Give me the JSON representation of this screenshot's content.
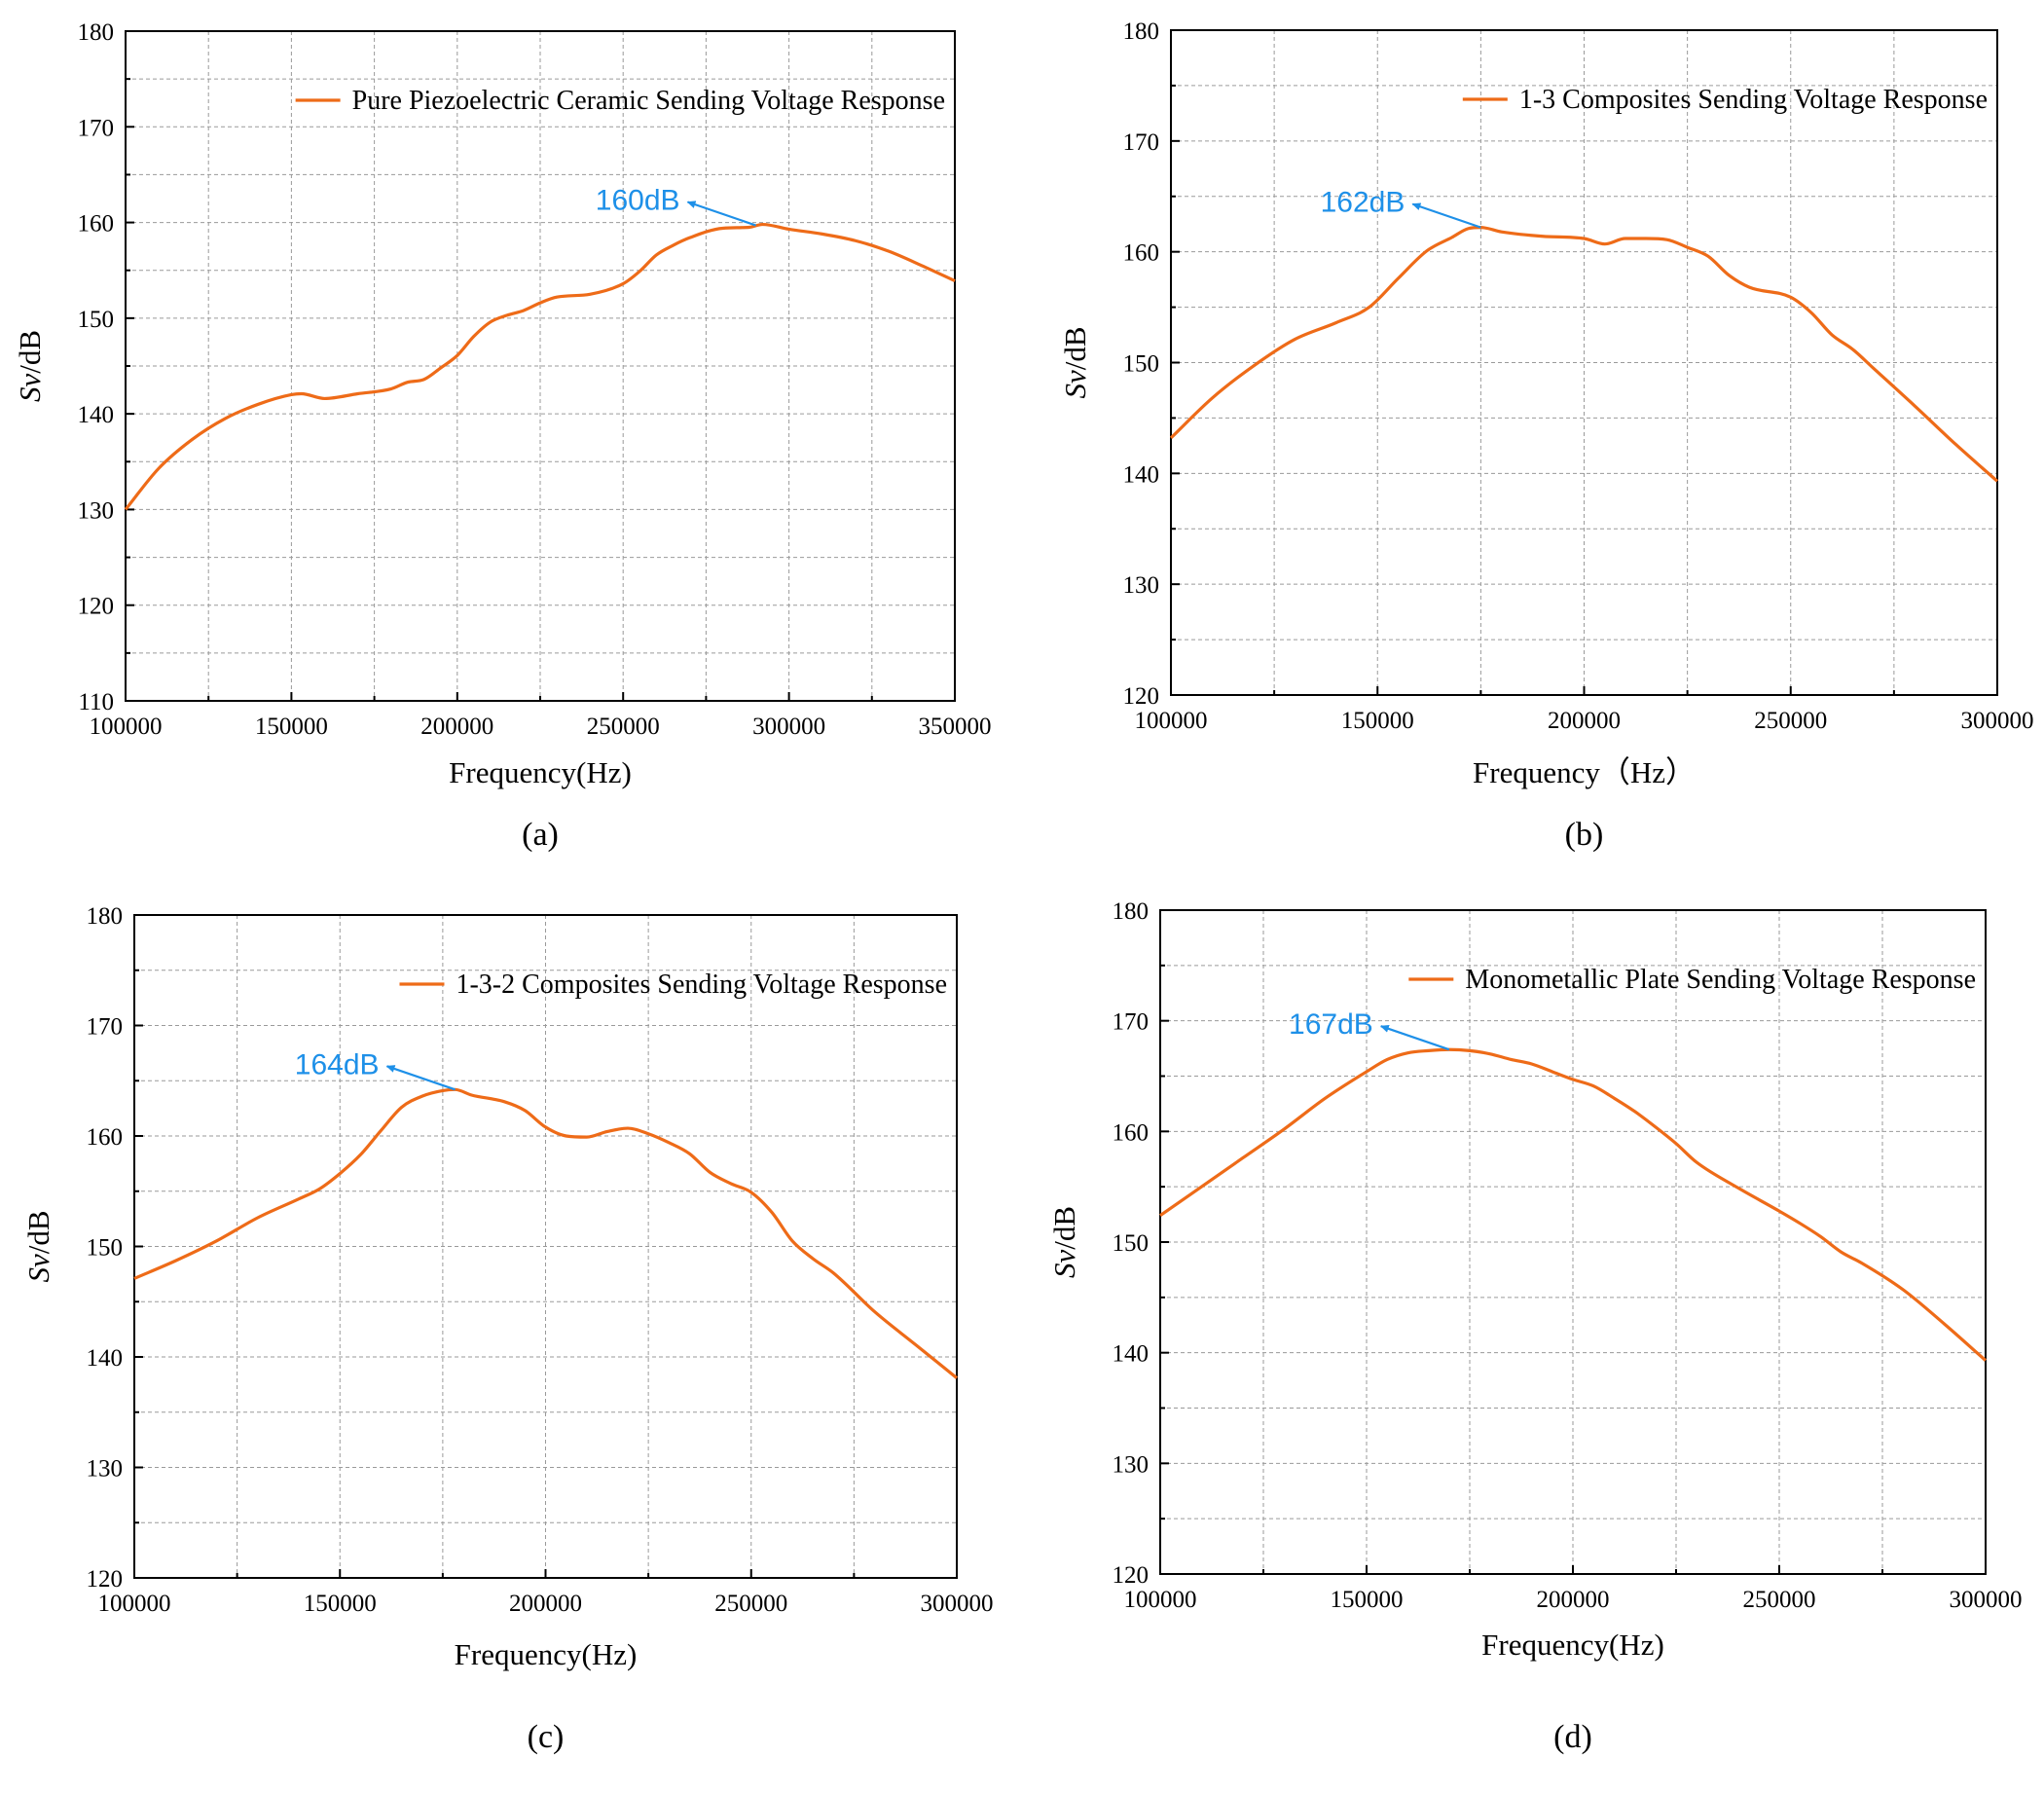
{
  "colors": {
    "series": "#EE6B18",
    "annotation": "#1E90E8",
    "grid": "#9a9a9a"
  },
  "ylabel_prefix": "Sv",
  "ylabel_suffix": "/dB",
  "chart_data": [
    {
      "type": "line",
      "caption": "(a)",
      "xlabel": "Frequency(Hz)",
      "xlim": [
        100000,
        350000
      ],
      "ylim": [
        110,
        180
      ],
      "xticks": [
        100000,
        150000,
        200000,
        250000,
        300000,
        350000
      ],
      "yticks": [
        110,
        120,
        130,
        140,
        150,
        160,
        170,
        180
      ],
      "grid": true,
      "legend": "top-right",
      "series": [
        {
          "name": "Pure Piezoelectric Ceramic Sending Voltage Response",
          "x": [
            100000,
            110000,
            120000,
            130000,
            140000,
            150000,
            153000,
            160000,
            170000,
            180000,
            185000,
            190000,
            195000,
            200000,
            205000,
            210000,
            215000,
            220000,
            225000,
            230000,
            240000,
            250000,
            255000,
            260000,
            265000,
            270000,
            280000,
            288000,
            292000,
            300000,
            310000,
            320000,
            330000,
            340000,
            350000
          ],
          "y": [
            130,
            134.3,
            137.3,
            139.5,
            141,
            142,
            142.1,
            141.6,
            142.1,
            142.6,
            143.3,
            143.6,
            144.8,
            146.1,
            148.1,
            149.6,
            150.3,
            150.8,
            151.6,
            152.2,
            152.5,
            153.6,
            154.9,
            156.6,
            157.6,
            158.4,
            159.4,
            159.5,
            159.8,
            159.3,
            158.8,
            158.1,
            157,
            155.5,
            153.9
          ]
        }
      ],
      "annotation": {
        "text": "160dB",
        "x": 290000,
        "y": 159.7
      }
    },
    {
      "type": "line",
      "caption": "(b)",
      "xlabel": "Frequency（Hz）",
      "xlim": [
        100000,
        300000
      ],
      "ylim": [
        120,
        180
      ],
      "xticks": [
        100000,
        150000,
        200000,
        250000,
        300000
      ],
      "yticks": [
        120,
        130,
        140,
        150,
        160,
        170,
        180
      ],
      "grid": true,
      "legend": "top-right",
      "series": [
        {
          "name": "1-3 Composites Sending Voltage Response",
          "x": [
            100000,
            110000,
            120000,
            130000,
            140000,
            148000,
            155000,
            162000,
            168000,
            172000,
            175000,
            180000,
            190000,
            200000,
            205000,
            210000,
            215000,
            220000,
            225000,
            230000,
            235000,
            240000,
            250000,
            255000,
            260000,
            265000,
            270000,
            280000,
            290000,
            300000
          ],
          "y": [
            143.2,
            146.8,
            149.7,
            152.1,
            153.6,
            155,
            157.6,
            160.1,
            161.3,
            162.1,
            162.2,
            161.8,
            161.4,
            161.2,
            160.7,
            161.2,
            161.2,
            161.1,
            160.4,
            159.6,
            157.9,
            156.8,
            155.9,
            154.5,
            152.5,
            151.2,
            149.5,
            146.1,
            142.6,
            139.3
          ]
        }
      ],
      "annotation": {
        "text": "162dB",
        "x": 175000,
        "y": 162.2
      }
    },
    {
      "type": "line",
      "caption": "(c)",
      "xlabel": "Frequency(Hz)",
      "xlim": [
        100000,
        300000
      ],
      "ylim": [
        120,
        180
      ],
      "xticks": [
        100000,
        150000,
        200000,
        250000,
        300000
      ],
      "yticks": [
        120,
        130,
        140,
        150,
        160,
        170,
        180
      ],
      "grid": true,
      "legend": "top-right",
      "series": [
        {
          "name": "1-3-2 Composites Sending Voltage Response",
          "x": [
            100000,
            110000,
            120000,
            130000,
            140000,
            145000,
            150000,
            155000,
            160000,
            165000,
            170000,
            175000,
            178000,
            182000,
            190000,
            195000,
            200000,
            205000,
            210000,
            215000,
            220000,
            225000,
            230000,
            235000,
            240000,
            245000,
            250000,
            255000,
            260000,
            265000,
            270000,
            280000,
            290000,
            300000
          ],
          "y": [
            147.1,
            148.7,
            150.5,
            152.6,
            154.3,
            155.2,
            156.6,
            158.3,
            160.5,
            162.6,
            163.6,
            164.1,
            164.2,
            163.7,
            163.1,
            162.3,
            160.8,
            160,
            159.9,
            160.4,
            160.7,
            160.2,
            159.4,
            158.4,
            156.7,
            155.7,
            154.9,
            153.1,
            150.5,
            148.9,
            147.6,
            144.1,
            141.1,
            138.1
          ]
        }
      ],
      "annotation": {
        "text": "164dB",
        "x": 178000,
        "y": 164.2
      }
    },
    {
      "type": "line",
      "caption": "(d)",
      "xlabel": "Frequency(Hz)",
      "xlim": [
        100000,
        300000
      ],
      "ylim": [
        120,
        180
      ],
      "xticks": [
        100000,
        150000,
        200000,
        250000,
        300000
      ],
      "yticks": [
        120,
        130,
        140,
        150,
        160,
        170,
        180
      ],
      "grid": true,
      "legend": "top-right",
      "series": [
        {
          "name": "Monometallic Plate Sending Voltage Response",
          "x": [
            100000,
            110000,
            120000,
            130000,
            140000,
            150000,
            155000,
            160000,
            165000,
            170000,
            175000,
            180000,
            185000,
            190000,
            195000,
            200000,
            205000,
            210000,
            215000,
            220000,
            225000,
            230000,
            240000,
            250000,
            255000,
            260000,
            265000,
            270000,
            280000,
            290000,
            300000
          ],
          "y": [
            152.4,
            155,
            157.6,
            160.2,
            163,
            165.4,
            166.5,
            167.1,
            167.3,
            167.4,
            167.3,
            167,
            166.5,
            166.1,
            165.4,
            164.7,
            164.1,
            163,
            161.8,
            160.4,
            158.9,
            157.2,
            154.9,
            152.8,
            151.7,
            150.5,
            149.1,
            148.1,
            145.7,
            142.6,
            139.3
          ]
        }
      ],
      "annotation": {
        "text": "167dB",
        "x": 170000,
        "y": 167.4
      }
    }
  ]
}
